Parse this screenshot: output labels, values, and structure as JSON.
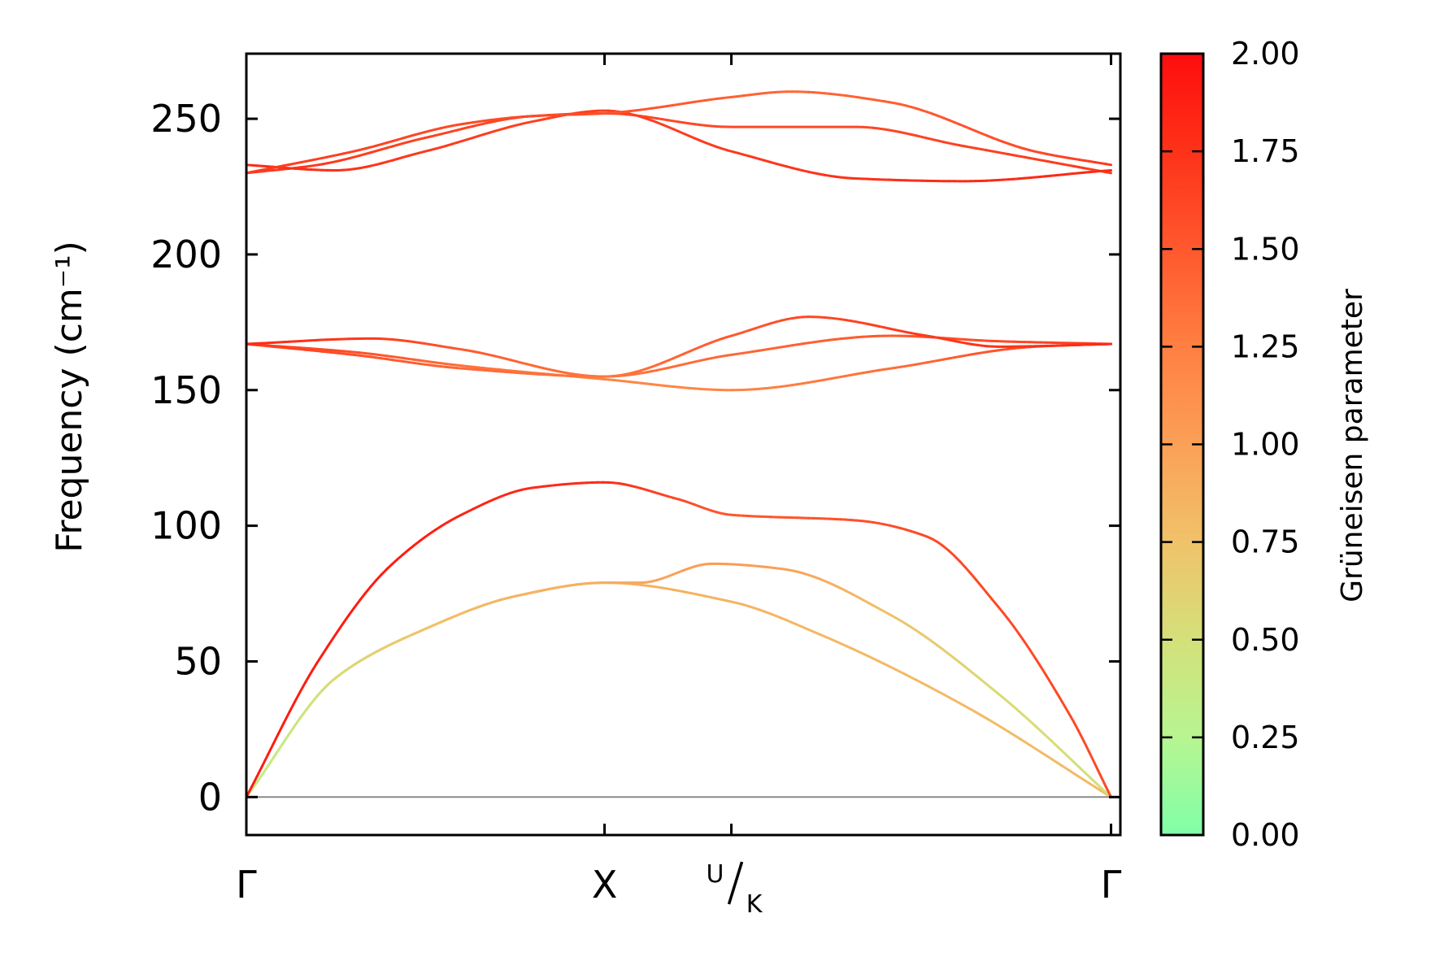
{
  "chart_data": {
    "type": "line",
    "title": "",
    "xlabel": "",
    "ylabel": "Frequency (cm⁻¹)",
    "ylim": [
      -14,
      274
    ],
    "yticks": [
      0,
      50,
      100,
      150,
      200,
      250
    ],
    "grid": false,
    "legend": "none",
    "zero_line": true,
    "x_path_range": [
      0,
      2.44
    ],
    "kpoints": [
      {
        "label": "Γ",
        "x": 0
      },
      {
        "label": "X",
        "x": 1.0
      },
      {
        "label": "U",
        "sub": "K",
        "x": 1.354
      },
      {
        "label": "Γ",
        "x": 2.414
      }
    ],
    "colorbar": {
      "label": "Grüneisen parameter",
      "min": 0.0,
      "max": 2.0,
      "ticks": [
        "0.00",
        "0.25",
        "0.50",
        "0.75",
        "1.00",
        "1.25",
        "1.50",
        "1.75",
        "2.00"
      ],
      "colors": [
        "#80ffa8",
        "#b7f591",
        "#d4e07a",
        "#f0c26a",
        "#fba057",
        "#ff7f42",
        "#ff582e",
        "#fd3219",
        "#ff0d0d"
      ]
    },
    "bands": [
      {
        "x": [
          0,
          0.25,
          0.5,
          0.75,
          1.0,
          1.354,
          1.6,
          2.0,
          2.414
        ],
        "y": [
          0,
          44,
          62,
          74,
          79,
          72,
          60,
          34,
          0
        ],
        "g": [
          0.3,
          0.55,
          0.75,
          0.85,
          0.9,
          0.85,
          0.82,
          0.8,
          0.8
        ]
      },
      {
        "x": [
          0,
          0.25,
          0.5,
          0.75,
          1.0,
          1.1,
          1.3,
          1.5,
          1.8,
          2.1,
          2.414
        ],
        "y": [
          0,
          44,
          62,
          74,
          79,
          79,
          86,
          84,
          67,
          38,
          0
        ],
        "g": [
          0.3,
          0.55,
          0.75,
          0.85,
          0.9,
          0.95,
          1.05,
          1.0,
          0.75,
          0.55,
          0.5
        ]
      },
      {
        "x": [
          0,
          0.2,
          0.4,
          0.6,
          0.8,
          1.0,
          1.2,
          1.354,
          1.7,
          1.9,
          2.1,
          2.3,
          2.414
        ],
        "y": [
          0,
          50,
          85,
          104,
          114,
          116,
          110,
          104,
          102,
          96,
          70,
          30,
          0
        ],
        "g": [
          1.9,
          1.9,
          1.9,
          1.85,
          1.8,
          1.8,
          1.6,
          1.5,
          1.55,
          1.6,
          1.6,
          1.6,
          1.6
        ]
      },
      {
        "x": [
          0,
          0.3,
          0.6,
          1.0,
          1.354,
          1.8,
          2.2,
          2.414
        ],
        "y": [
          167,
          164,
          159,
          154,
          150,
          158,
          166,
          167
        ],
        "g": [
          1.7,
          1.55,
          1.35,
          1.2,
          1.2,
          1.35,
          1.6,
          1.7
        ]
      },
      {
        "x": [
          0,
          0.3,
          0.6,
          1.0,
          1.354,
          1.8,
          2.1,
          2.414
        ],
        "y": [
          167,
          163,
          158,
          155,
          163,
          170,
          168,
          167
        ],
        "g": [
          1.7,
          1.55,
          1.4,
          1.3,
          1.4,
          1.5,
          1.6,
          1.7
        ]
      },
      {
        "x": [
          0,
          0.35,
          0.6,
          1.0,
          1.354,
          1.57,
          1.9,
          2.1,
          2.414
        ],
        "y": [
          167,
          169,
          165,
          155,
          170,
          177,
          170,
          166,
          167
        ],
        "g": [
          1.8,
          1.7,
          1.5,
          1.3,
          1.5,
          1.6,
          1.7,
          1.75,
          1.8
        ]
      },
      {
        "x": [
          0,
          0.2,
          0.5,
          0.8,
          1.0,
          1.354,
          1.7,
          2.0,
          2.414
        ],
        "y": [
          230,
          233,
          243,
          251,
          252,
          247,
          247,
          240,
          230
        ],
        "g": [
          1.7,
          1.7,
          1.65,
          1.6,
          1.6,
          1.6,
          1.6,
          1.65,
          1.7
        ]
      },
      {
        "x": [
          0,
          0.25,
          0.5,
          0.8,
          1.0,
          1.354,
          1.7,
          2.0,
          2.414
        ],
        "y": [
          233,
          231,
          238,
          249,
          253,
          238,
          228,
          227,
          231
        ],
        "g": [
          1.8,
          1.75,
          1.7,
          1.65,
          1.65,
          1.7,
          1.75,
          1.8,
          1.8
        ]
      },
      {
        "x": [
          0,
          0.3,
          0.6,
          0.8,
          1.0,
          1.354,
          1.52,
          1.8,
          2.2,
          2.414
        ],
        "y": [
          230,
          238,
          248,
          251,
          252,
          258,
          260,
          256,
          238,
          233
        ],
        "g": [
          1.7,
          1.65,
          1.6,
          1.6,
          1.55,
          1.45,
          1.4,
          1.45,
          1.6,
          1.7
        ]
      }
    ]
  }
}
